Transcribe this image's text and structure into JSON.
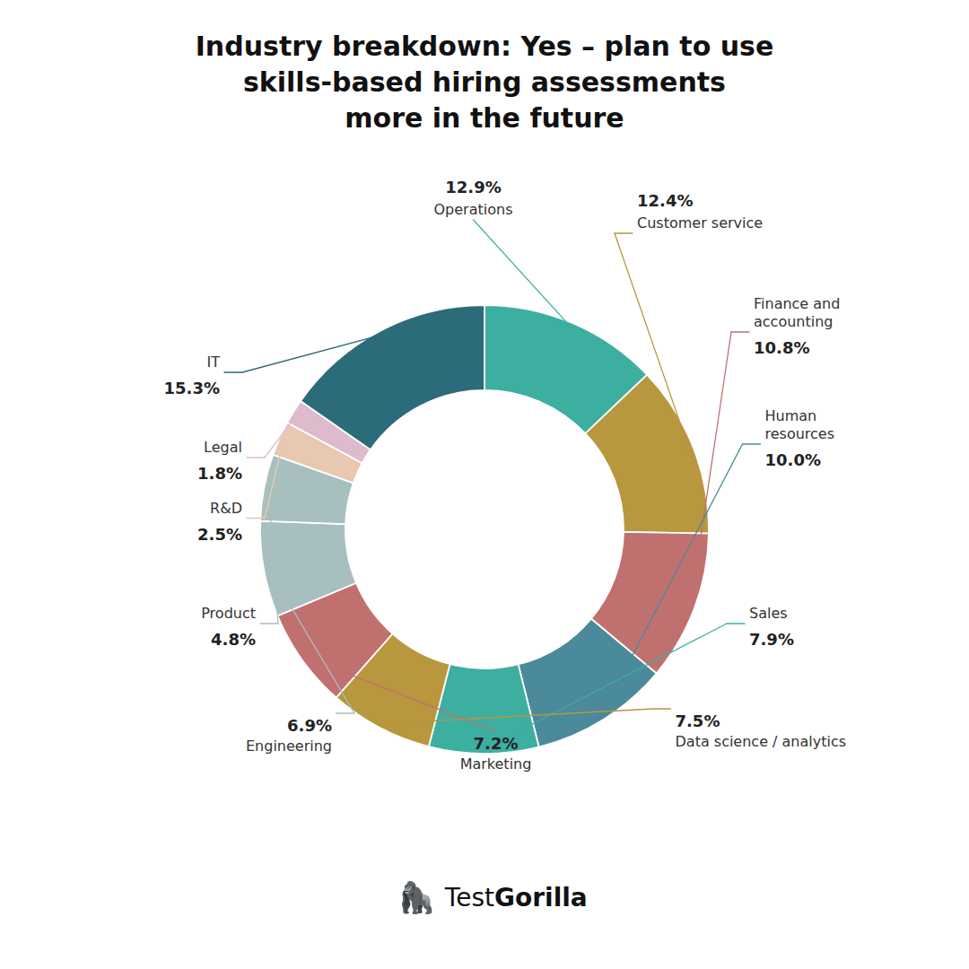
{
  "chart_data": {
    "type": "donut",
    "title": "Industry breakdown: Yes – plan to use\nskills-based hiring assessments\nmore in the future",
    "categories": [
      "Operations",
      "Customer service",
      "Finance and\naccounting",
      "Human\nresources",
      "Sales",
      "Data science / analytics",
      "Marketing",
      "Engineering",
      "Product",
      "R&D",
      "Legal",
      "IT"
    ],
    "values": [
      12.9,
      12.4,
      10.8,
      10.0,
      7.9,
      7.5,
      7.2,
      6.9,
      4.8,
      2.5,
      1.8,
      15.3
    ],
    "value_labels": [
      "12.9%",
      "12.4%",
      "10.8%",
      "10.0%",
      "7.9%",
      "7.5%",
      "7.2%",
      "6.9%",
      "4.8%",
      "2.5%",
      "1.8%",
      "15.3%"
    ],
    "colors": [
      "#3DAFA0",
      "#B8973E",
      "#C17070",
      "#4A8A9A",
      "#3DAFA0",
      "#B8973E",
      "#C17070",
      "#A8BFBF",
      "#A8BFBF",
      "#E8C8B0",
      "#DDBBCC",
      "#2C6B7A"
    ],
    "data_labels": true,
    "annotations": [
      "🦍",
      "Test",
      "Gorilla"
    ]
  }
}
